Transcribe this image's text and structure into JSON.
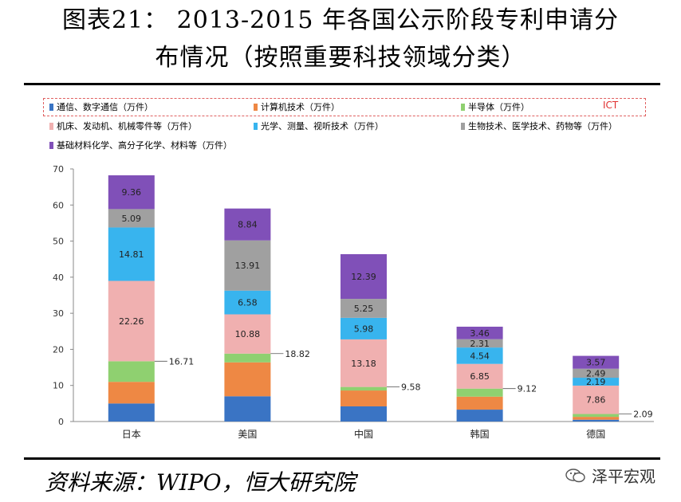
{
  "title_line1": "图表21： 2013-2015 年各国公示阶段专利申请分",
  "title_line2": "布情况（按照重要科技领域分类）",
  "source": "资料来源：WIPO，恒大研究院",
  "watermark": "泽平宏观",
  "ict_label": "ICT",
  "chart_data": {
    "type": "bar",
    "stacked": true,
    "title": "2013-2015 年各国公示阶段专利申请分布情况（按照重要科技领域分类）",
    "categories": [
      "日本",
      "美国",
      "中国",
      "韩国",
      "德国"
    ],
    "ylim": [
      0,
      70
    ],
    "yticks": [
      0,
      10,
      20,
      30,
      40,
      50,
      60,
      70
    ],
    "series": [
      {
        "name": "通信、数字通信（万件）",
        "color": "#3a74c4",
        "values": [
          5.0,
          7.0,
          4.2,
          3.3,
          0.5
        ]
      },
      {
        "name": "计算机技术（万件）",
        "color": "#ee8844",
        "values": [
          6.0,
          9.4,
          4.4,
          3.6,
          0.8
        ]
      },
      {
        "name": "半导体（万件）",
        "color": "#8fd070",
        "values": [
          5.71,
          2.42,
          0.98,
          2.22,
          0.79
        ]
      },
      {
        "name": "机床、发动机、机械零件等（万件）",
        "color": "#f0b0b0",
        "values": [
          22.26,
          10.88,
          13.18,
          6.85,
          7.86
        ]
      },
      {
        "name": "光学、测量、视听技术（万件）",
        "color": "#38b4ee",
        "values": [
          14.81,
          6.58,
          5.98,
          4.54,
          2.19
        ]
      },
      {
        "name": "生物技术、医学技术、药物等（万件）",
        "color": "#a0a0a0",
        "values": [
          5.09,
          13.91,
          5.25,
          2.31,
          2.49
        ]
      },
      {
        "name": "基础材料化学、高分子化学、材料等（万件）",
        "color": "#8050b8",
        "values": [
          9.36,
          8.84,
          12.39,
          3.46,
          3.57
        ]
      }
    ],
    "ict_totals": [
      16.71,
      18.82,
      9.58,
      9.12,
      2.09
    ],
    "labeled_series": [
      3,
      4,
      5,
      6
    ]
  }
}
